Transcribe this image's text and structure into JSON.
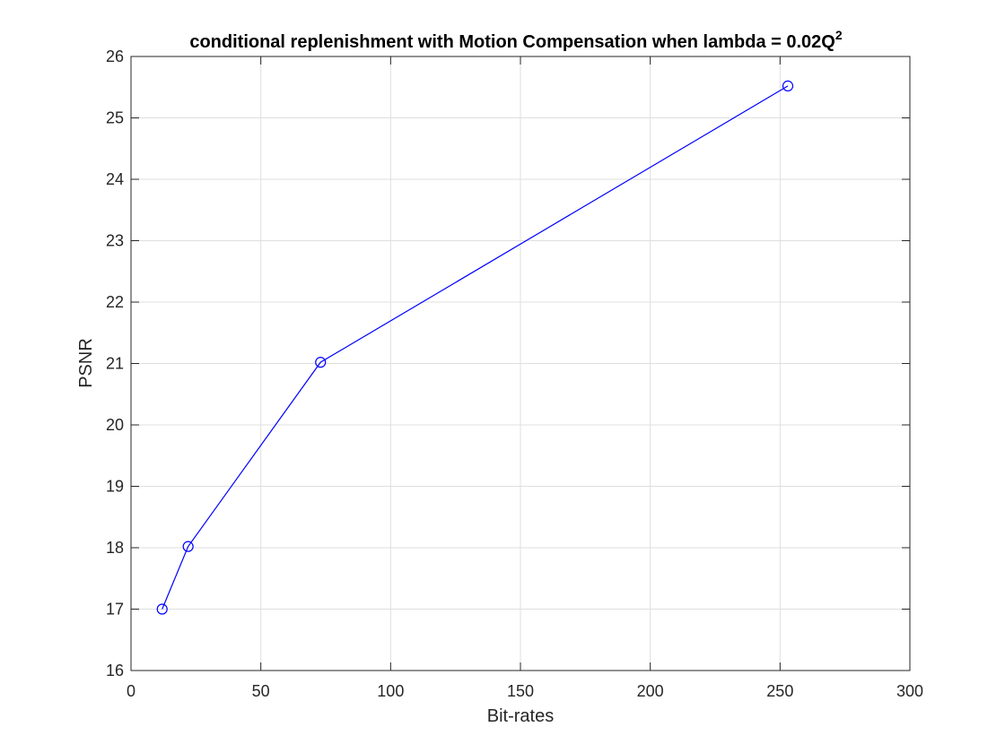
{
  "chart_data": {
    "type": "line",
    "title": "conditional replenishment with Motion Compensation when lambda = 0.02Q",
    "title_superscript": "2",
    "xlabel": "Bit-rates",
    "ylabel": "PSNR",
    "xlim": [
      0,
      300
    ],
    "ylim": [
      16,
      26
    ],
    "xticks": [
      0,
      50,
      100,
      150,
      200,
      250,
      300
    ],
    "yticks": [
      16,
      17,
      18,
      19,
      20,
      21,
      22,
      23,
      24,
      25,
      26
    ],
    "grid": true,
    "legend": null,
    "series": [
      {
        "color": "#0000ff",
        "marker": "circle",
        "x": [
          12,
          22,
          73,
          253
        ],
        "y": [
          17.0,
          18.02,
          21.02,
          25.52
        ]
      }
    ]
  }
}
